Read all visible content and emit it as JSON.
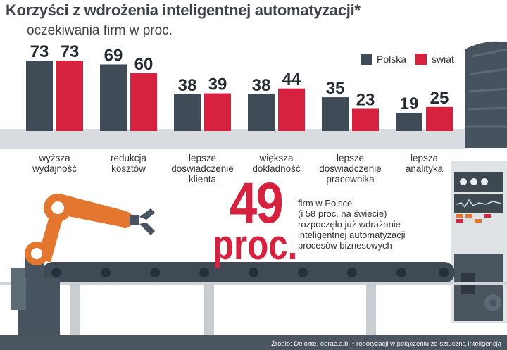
{
  "chart_data": {
    "type": "bar",
    "title": "Korzyści z wdrożenia inteligentnej automatyzacji*",
    "subtitle": "oczekiwania firm w proc.",
    "categories": [
      "wyższa\nwydajność",
      "redukcja\nkosztów",
      "lepsze\ndoświadczenie\nklienta",
      "większa\ndokładność",
      "lepsze\ndoświadczenie\npracownika",
      "lepsza\nanalityka"
    ],
    "series": [
      {
        "name": "Polska",
        "color": "#3f4c57",
        "values": [
          73,
          69,
          38,
          38,
          35,
          19
        ]
      },
      {
        "name": "świat",
        "color": "#d6213f",
        "values": [
          73,
          60,
          39,
          44,
          23,
          25
        ]
      }
    ],
    "ylim": [
      0,
      73
    ],
    "legend": "top-right"
  },
  "highlight": {
    "number": "49",
    "unit": "proc.",
    "lines": [
      "firm w Polsce",
      "(i 58 proc. na świecie)",
      "rozpoczęło już wdrażanie",
      "inteligentnej automatyzacji",
      "procesów biznesowych"
    ]
  },
  "source": "Źródło: Deloitte, oprac.a.b.,* robotyzacji w połączeniu ze sztuczną inteligencją",
  "colors": {
    "polska": "#3f4c57",
    "swiat": "#d6213f",
    "machine": "#4a5560",
    "belt": "#d8dce0",
    "robot": "#e3772f"
  }
}
